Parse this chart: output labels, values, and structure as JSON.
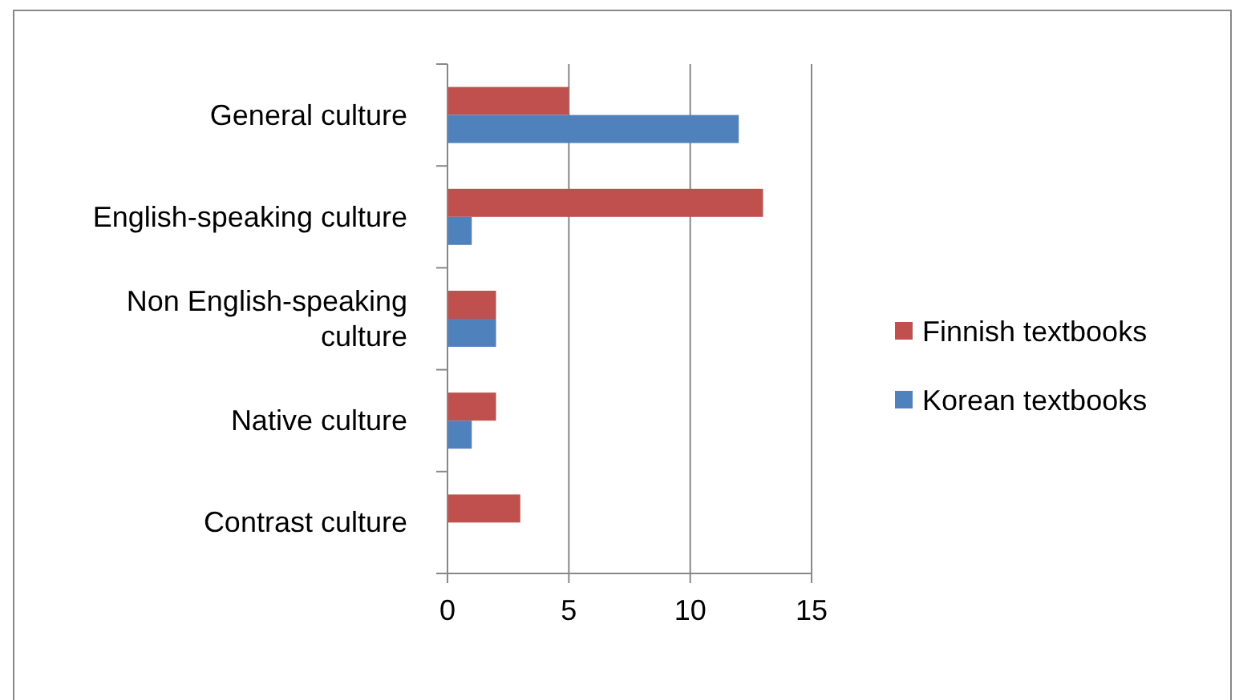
{
  "chart_data": {
    "type": "bar",
    "orientation": "horizontal",
    "categories": [
      "General culture",
      "English-speaking culture",
      "Non English-speaking culture",
      "Native culture",
      "Contrast culture"
    ],
    "series": [
      {
        "name": "Finnish textbooks",
        "color": "#c0504d",
        "values": [
          5,
          13,
          2,
          2,
          3
        ]
      },
      {
        "name": "Korean textbooks",
        "color": "#4f81bd",
        "values": [
          12,
          1,
          2,
          1,
          0
        ]
      }
    ],
    "xlim": [
      0,
      15
    ],
    "xticks": [
      0,
      5,
      10,
      15
    ],
    "grid": "x",
    "legend": "right"
  }
}
